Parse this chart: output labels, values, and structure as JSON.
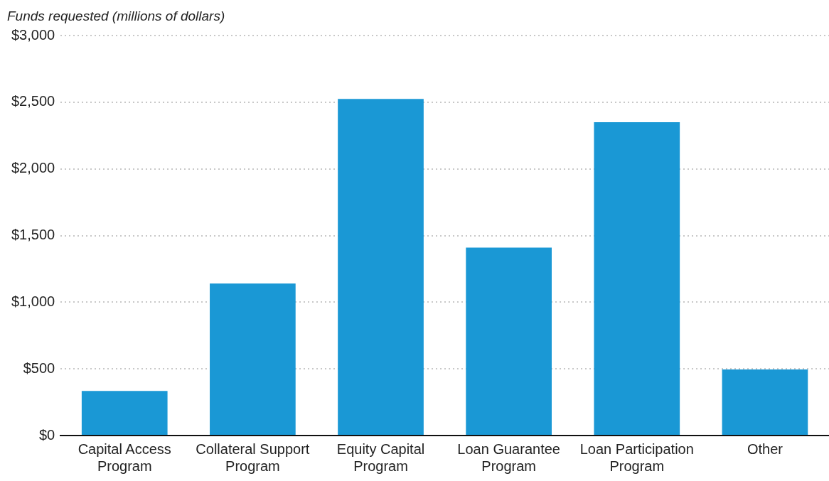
{
  "chart_data": {
    "type": "bar",
    "ylabel": "Funds requested (millions of dollars)",
    "categories": [
      "Capital Access Program",
      "Collateral Support Program",
      "Equity Capital Program",
      "Loan Guarantee Program",
      "Loan Participation Program",
      "Other"
    ],
    "values": [
      335,
      1140,
      2525,
      1410,
      2350,
      495
    ],
    "color": "#1a98d5",
    "ylim": [
      0,
      3000
    ],
    "yticks": [
      {
        "value": 0,
        "label": "$0"
      },
      {
        "value": 500,
        "label": "$500"
      },
      {
        "value": 1000,
        "label": "$1,000"
      },
      {
        "value": 1500,
        "label": "$1,500"
      },
      {
        "value": 2000,
        "label": "$2,000"
      },
      {
        "value": 2500,
        "label": "$2,500"
      },
      {
        "value": 3000,
        "label": "$3,000"
      }
    ],
    "grid": "y",
    "legend": false
  }
}
